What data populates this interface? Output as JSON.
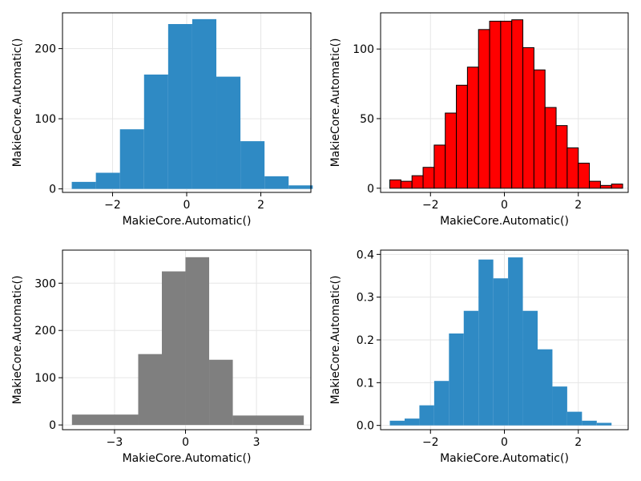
{
  "chart_data": [
    {
      "type": "bar",
      "panel": "top-left",
      "xlabel": "MakieCore.Automatic()",
      "ylabel": "MakieCore.Automatic()",
      "xlim": [
        -3.35,
        3.35
      ],
      "ylim": [
        -5,
        251
      ],
      "xticks": [
        -2,
        0,
        2
      ],
      "yticks": [
        0,
        100,
        200
      ],
      "grid": true,
      "fill_color": "#2f8ac4",
      "edge_color": "",
      "bin_edges": [
        -3.1,
        -2.45,
        -1.8,
        -1.15,
        -0.5,
        0.15,
        0.8,
        1.45,
        2.1,
        2.75,
        3.4
      ],
      "values": [
        10,
        23,
        85,
        163,
        235,
        242,
        160,
        68,
        18,
        5
      ]
    },
    {
      "type": "bar",
      "panel": "top-right",
      "xlabel": "MakieCore.Automatic()",
      "ylabel": "MakieCore.Automatic()",
      "xlim": [
        -3.35,
        3.35
      ],
      "ylim": [
        -3,
        126
      ],
      "xticks": [
        -2,
        0,
        2
      ],
      "yticks": [
        0,
        50,
        100
      ],
      "grid": true,
      "fill_color": "#ff0000",
      "edge_color": "#000000",
      "bin_edges": [
        -3.1,
        -2.8,
        -2.5,
        -2.2,
        -1.9,
        -1.6,
        -1.3,
        -1.0,
        -0.7,
        -0.4,
        -0.1,
        0.2,
        0.5,
        0.8,
        1.1,
        1.4,
        1.7,
        2.0,
        2.3,
        2.6,
        2.9,
        3.2
      ],
      "values": [
        6,
        5,
        9,
        15,
        31,
        54,
        74,
        87,
        114,
        120,
        120,
        121,
        101,
        85,
        58,
        45,
        29,
        18,
        5,
        2,
        3
      ]
    },
    {
      "type": "bar",
      "panel": "bottom-left",
      "xlabel": "MakieCore.Automatic()",
      "ylabel": "MakieCore.Automatic()",
      "xlim": [
        -5.2,
        5.3
      ],
      "ylim": [
        -10,
        370
      ],
      "xticks": [
        -3,
        0,
        3
      ],
      "yticks": [
        0,
        100,
        200,
        300
      ],
      "grid": true,
      "fill_color": "#7f7f7f",
      "edge_color": "",
      "bin_edges": [
        -4.8,
        -2.0,
        -1.0,
        0.0,
        1.0,
        2.0,
        5.0
      ],
      "values": [
        22,
        150,
        325,
        355,
        138,
        20
      ]
    },
    {
      "type": "bar",
      "panel": "bottom-right",
      "xlabel": "MakieCore.Automatic()",
      "ylabel": "MakieCore.Automatic()",
      "xlim": [
        -3.35,
        3.35
      ],
      "ylim": [
        -0.01,
        0.41
      ],
      "xticks": [
        -2,
        0,
        2
      ],
      "yticks": [
        0.0,
        0.1,
        0.2,
        0.3,
        0.4
      ],
      "ytick_labels": [
        "0.0",
        "0.1",
        "0.2",
        "0.3",
        "0.4"
      ],
      "grid": true,
      "fill_color": "#2f8ac4",
      "edge_color": "",
      "bin_edges": [
        -3.1,
        -2.7,
        -2.3,
        -1.9,
        -1.5,
        -1.1,
        -0.7,
        -0.3,
        0.1,
        0.5,
        0.9,
        1.3,
        1.7,
        2.1,
        2.5,
        2.9,
        3.3
      ],
      "values": [
        0.011,
        0.016,
        0.047,
        0.104,
        0.215,
        0.268,
        0.388,
        0.344,
        0.393,
        0.268,
        0.178,
        0.091,
        0.032,
        0.011,
        0.006,
        0.0
      ]
    }
  ]
}
